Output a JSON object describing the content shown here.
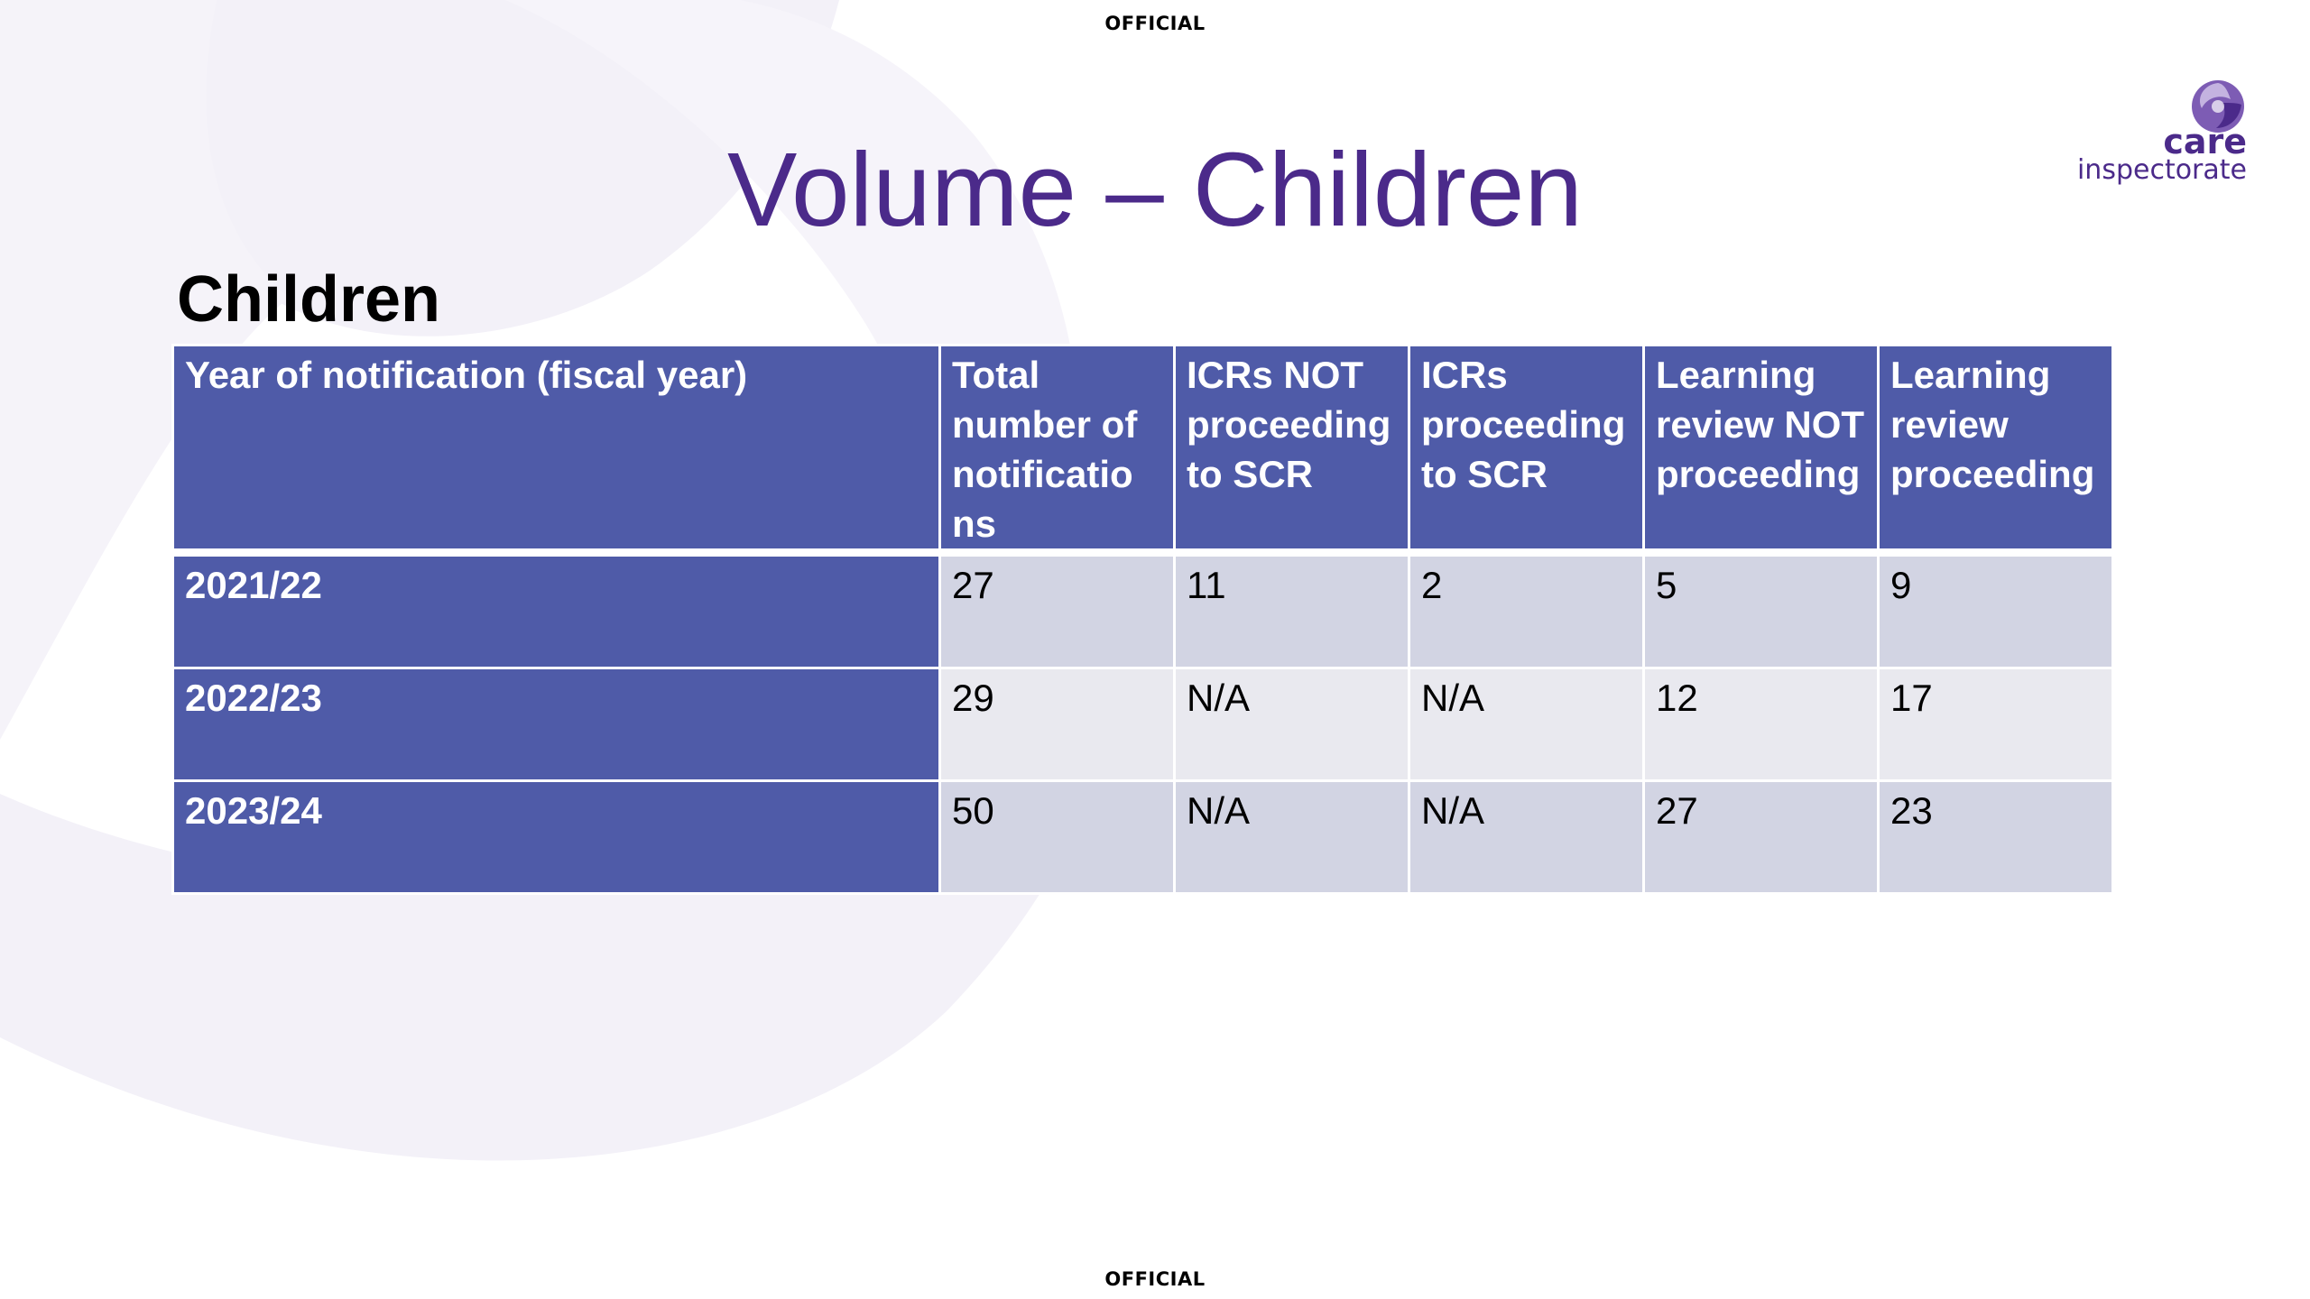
{
  "marking": {
    "top": "OFFICIAL",
    "bottom": "OFFICIAL"
  },
  "title": "Volume – Children",
  "logo": {
    "icon": "care-inspectorate-swirl-icon",
    "line1": "care",
    "line2": "inspectorate"
  },
  "subheading": "Children",
  "table": {
    "headers": [
      "Year of notification (fiscal year)",
      "Total number of notificatio ns",
      "ICRs NOT proceeding to SCR",
      "ICRs proceeding to SCR",
      "Learning review NOT proceeding",
      "Learning review proceeding"
    ],
    "rows": [
      {
        "year": "2021/22",
        "values": [
          "27",
          "11",
          "2",
          "5",
          "9"
        ]
      },
      {
        "year": "2022/23",
        "values": [
          "29",
          "N/A",
          "N/A",
          "12",
          "17"
        ]
      },
      {
        "year": "2023/24",
        "values": [
          "50",
          "N/A",
          "N/A",
          "27",
          "23"
        ]
      }
    ]
  },
  "colors": {
    "title": "#4b2a8a",
    "header_fill": "#4f5ba8",
    "row_odd": "#d2d4e3",
    "row_even": "#e9e9ef",
    "background_swirl": "#f3f1f8"
  }
}
